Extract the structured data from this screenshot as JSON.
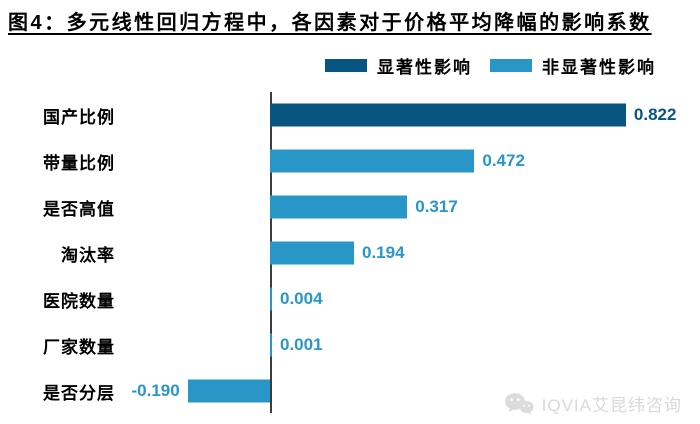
{
  "title": "图4：多元线性回归方程中，各因素对于价格平均降幅的影响系数",
  "legend": {
    "significant_label": "显著性影响",
    "non_significant_label": "非显著性影响"
  },
  "colors": {
    "significant": "#085582",
    "non_significant": "#2996c8",
    "axis": "#3d3d3d",
    "watermark": "#d9d9d9"
  },
  "watermark": {
    "icon": "wechat-logo-icon",
    "text": "IQVIA艾昆纬咨询"
  },
  "chart_data": {
    "type": "bar",
    "orientation": "horizontal",
    "title": "图4：多元线性回归方程中，各因素对于价格平均降幅的影响系数",
    "categories": [
      "国产比例",
      "带量比例",
      "是否高值",
      "淘汰率",
      "医院数量",
      "厂家数量",
      "是否分层"
    ],
    "values": [
      0.822,
      0.472,
      0.317,
      0.194,
      0.004,
      0.001,
      -0.19
    ],
    "value_labels": [
      "0.822",
      "0.472",
      "0.317",
      "0.194",
      "0.004",
      "0.001",
      "-0.190"
    ],
    "significance": [
      "significant",
      "non_significant",
      "non_significant",
      "non_significant",
      "non_significant",
      "non_significant",
      "non_significant"
    ],
    "legend_entries": [
      "显著性影响",
      "非显著性影响"
    ],
    "legend_position": "top",
    "grid": false,
    "xlim": [
      -0.25,
      0.95
    ],
    "xlabel": "",
    "ylabel": ""
  }
}
